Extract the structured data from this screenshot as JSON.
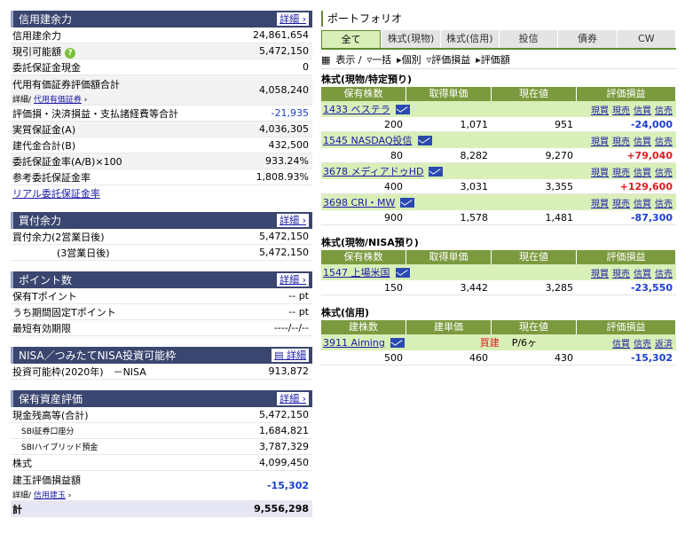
{
  "credit": {
    "title": "信用建余力",
    "more": "詳細",
    "rows": [
      {
        "label": "信用建余力",
        "value": "24,861,654"
      },
      {
        "label": "現引可能額",
        "value": "5,472,150"
      },
      {
        "label": "委託保証金現金",
        "value": "0"
      },
      {
        "label": "代用有価証券評価額合計",
        "value": "4,058,240",
        "sub_label": "詳細/",
        "sub_link": "代用有価証券"
      },
      {
        "label": "評価損・決済損益・支払諸経費等合計",
        "value": "-21,935"
      },
      {
        "label": "実質保証金(A)",
        "value": "4,036,305"
      },
      {
        "label": "建代金合計(B)",
        "value": "432,500"
      },
      {
        "label": "委託保証金率(A/B)×100",
        "value": "933.24%"
      },
      {
        "label": "参考委託保証金率",
        "value": "1,808.93%"
      }
    ],
    "link": "リアル委託保証金率",
    "help": "?"
  },
  "buy": {
    "title": "買付余力",
    "more": "詳細",
    "r1_label": "買付余力(2営業日後)",
    "r1_value": "5,472,150",
    "r2_label": "(3営業日後)",
    "r2_value": "5,472,150"
  },
  "points": {
    "title": "ポイント数",
    "more": "詳細",
    "rows": [
      {
        "label": "保有Tポイント",
        "value": "-- pt"
      },
      {
        "label": "うち期間固定Tポイント",
        "value": "-- pt"
      },
      {
        "label": "最短有効期限",
        "value": "----/--/--"
      }
    ]
  },
  "nisa": {
    "title": "NISA／つみたてNISA投資可能枠",
    "more": "詳細",
    "label": "投資可能枠(2020年)　－NISA",
    "value": "913,872"
  },
  "assets": {
    "title": "保有資産評価",
    "more": "詳細",
    "rows": [
      {
        "label": "現金残高等(合計)",
        "value": "5,472,150"
      },
      {
        "label": "SBI証券口座分",
        "value": "1,684,821"
      },
      {
        "label": "SBIハイブリッド預金",
        "value": "3,787,329"
      },
      {
        "label": "株式",
        "value": "4,099,450"
      },
      {
        "label": "建玉評価損益額",
        "value": "-15,302",
        "sub_label": "詳細/",
        "sub_link": "信用建玉"
      }
    ],
    "total_label": "計",
    "total_value": "9,556,298"
  },
  "portfolio": {
    "title": "ポートフォリオ",
    "tabs": [
      "全て",
      "株式(現物)",
      "株式(信用)",
      "投信",
      "債券",
      "CW"
    ],
    "ctrl": [
      "表示 /",
      "一括",
      "個別",
      "評価損益",
      "評価額"
    ],
    "tokutei": {
      "title": "株式(現物/特定預り)",
      "headers": [
        "保有株数",
        "取得単価",
        "現在値",
        "評価損益"
      ],
      "items": [
        {
          "name": "1433 ベステラ",
          "qty": "200",
          "cost": "1,071",
          "price": "951",
          "pl": "-24,000",
          "pos": false
        },
        {
          "name": "1545 NASDAQ投信",
          "qty": "80",
          "cost": "8,282",
          "price": "9,270",
          "pl": "+79,040",
          "pos": true
        },
        {
          "name": "3678 メディアドゥHD",
          "qty": "400",
          "cost": "3,031",
          "price": "3,355",
          "pl": "+129,600",
          "pos": true
        },
        {
          "name": "3698 CRI・MW",
          "qty": "900",
          "cost": "1,578",
          "price": "1,481",
          "pl": "-87,300",
          "pos": false
        }
      ],
      "links": [
        "現買",
        "現売",
        "信買",
        "信売"
      ]
    },
    "nisa": {
      "title": "株式(現物/NISA預り)",
      "headers": [
        "保有株数",
        "取得単価",
        "現在値",
        "評価損益"
      ],
      "items": [
        {
          "name": "1547 上場米国",
          "qty": "150",
          "cost": "3,442",
          "price": "3,285",
          "pl": "-23,550"
        }
      ]
    },
    "margin": {
      "title": "株式(信用)",
      "headers": [
        "建株数",
        "建単価",
        "現在値",
        "評価損益"
      ],
      "items": [
        {
          "name": "3911 Aiming",
          "type": "買建",
          "period": "P/6ヶ",
          "qty": "500",
          "cost": "460",
          "price": "430",
          "pl": "-15,302"
        }
      ],
      "links": [
        "信買",
        "信売",
        "返済"
      ]
    }
  }
}
